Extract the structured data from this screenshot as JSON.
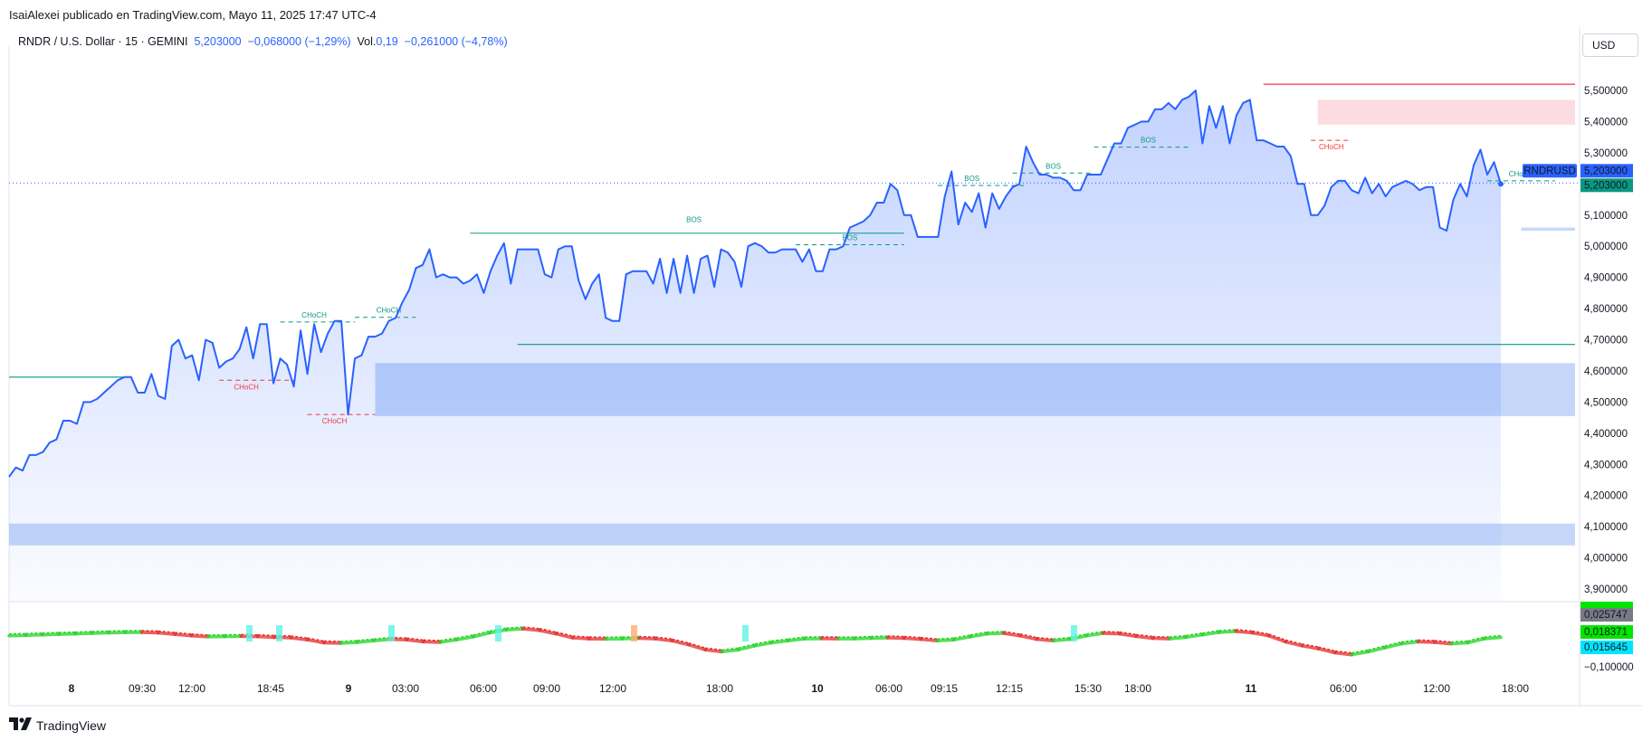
{
  "header": {
    "publisher_line": "IsaiAlexei publicado en TradingView.com, Mayo 11, 2025 17:47 UTC-4"
  },
  "symbol_bar": {
    "symbol": "RNDR / U.S. Dollar · 15 · GEMINI",
    "last": "5,203000",
    "change": "−0,068000 (−1,29%)",
    "vol_label": "Vol.",
    "vol_value": "0,19",
    "vol_change": "−0,261000 (−4,78%)"
  },
  "currency_button": "USD",
  "footer": {
    "logo_text": "TradingView"
  },
  "colors": {
    "price_line": "#2962ff",
    "bullish": "#089981",
    "bearish": "#f23645",
    "zone_blue": "#bbd0f8",
    "zone_red": "#fcdce0",
    "osc_up": "#22d422",
    "osc_down": "#e52b2b"
  },
  "chart_data": {
    "type": "line",
    "title": "",
    "price_axis": {
      "ticks": [
        5.5,
        5.4,
        5.3,
        5.2,
        5.1,
        5.0,
        4.9,
        4.8,
        4.7,
        4.6,
        4.5,
        4.4,
        4.3,
        4.2,
        4.1,
        4.0,
        3.9
      ],
      "tick_labels": [
        "5,500000",
        "5,400000",
        "5,300000",
        "5,200000",
        "5,100000",
        "5,000000",
        "4,900000",
        "4,800000",
        "4,700000",
        "4,600000",
        "4,500000",
        "4,400000",
        "4,300000",
        "4,200000",
        "4,100000",
        "4,000000",
        "3,900000"
      ],
      "ylim": [
        3.88,
        5.6
      ]
    },
    "time_axis": {
      "labels": [
        "8",
        "09:30",
        "12:00",
        "18:45",
        "9",
        "03:00",
        "06:00",
        "09:00",
        "12:00",
        "18:00",
        "10",
        "06:00",
        "09:15",
        "12:15",
        "15:30",
        "18:00",
        "11",
        "06:00",
        "12:00",
        "18:00"
      ],
      "bold": [
        "8",
        "9",
        "10",
        "11"
      ]
    },
    "series": [
      {
        "name": "RNDRUSD",
        "values": [
          4.26,
          4.29,
          4.28,
          4.33,
          4.33,
          4.34,
          4.37,
          4.38,
          4.44,
          4.44,
          4.43,
          4.5,
          4.5,
          4.51,
          4.53,
          4.55,
          4.57,
          4.58,
          4.58,
          4.53,
          4.53,
          4.59,
          4.52,
          4.51,
          4.68,
          4.7,
          4.64,
          4.65,
          4.57,
          4.7,
          4.69,
          4.61,
          4.63,
          4.64,
          4.67,
          4.74,
          4.64,
          4.75,
          4.75,
          4.56,
          4.64,
          4.62,
          4.55,
          4.73,
          4.59,
          4.75,
          4.66,
          4.72,
          4.76,
          4.76,
          4.46,
          4.64,
          4.65,
          4.71,
          4.71,
          4.72,
          4.76,
          4.77,
          4.82,
          4.86,
          4.93,
          4.94,
          4.99,
          4.9,
          4.91,
          4.9,
          4.9,
          4.88,
          4.89,
          4.91,
          4.85,
          4.92,
          4.97,
          5.01,
          4.88,
          4.99,
          4.99,
          4.99,
          4.99,
          4.91,
          4.9,
          4.99,
          5.0,
          5.0,
          4.89,
          4.83,
          4.88,
          4.91,
          4.77,
          4.76,
          4.76,
          4.91,
          4.92,
          4.92,
          4.92,
          4.88,
          4.96,
          4.85,
          4.96,
          4.85,
          4.97,
          4.85,
          4.96,
          4.97,
          4.87,
          4.99,
          4.98,
          4.95,
          4.87,
          5.0,
          5.01,
          5.0,
          4.98,
          4.98,
          4.99,
          4.99,
          4.99,
          4.95,
          4.99,
          4.92,
          4.92,
          4.99,
          4.99,
          5.0,
          5.06,
          5.07,
          5.08,
          5.1,
          5.14,
          5.14,
          5.2,
          5.18,
          5.1,
          5.1,
          5.03,
          5.03,
          5.03,
          5.03,
          5.16,
          5.24,
          5.07,
          5.14,
          5.11,
          5.17,
          5.06,
          5.17,
          5.12,
          5.16,
          5.19,
          5.2,
          5.32,
          5.27,
          5.23,
          5.23,
          5.22,
          5.22,
          5.21,
          5.18,
          5.18,
          5.23,
          5.23,
          5.23,
          5.28,
          5.33,
          5.33,
          5.38,
          5.39,
          5.4,
          5.4,
          5.44,
          5.44,
          5.46,
          5.44,
          5.47,
          5.48,
          5.5,
          5.33,
          5.45,
          5.38,
          5.45,
          5.33,
          5.42,
          5.46,
          5.47,
          5.34,
          5.34,
          5.33,
          5.32,
          5.32,
          5.29,
          5.2,
          5.2,
          5.1,
          5.1,
          5.13,
          5.19,
          5.21,
          5.21,
          5.18,
          5.17,
          5.22,
          5.17,
          5.2,
          5.16,
          5.19,
          5.2,
          5.21,
          5.2,
          5.18,
          5.19,
          5.19,
          5.06,
          5.05,
          5.15,
          5.2,
          5.16,
          5.26,
          5.31,
          5.23,
          5.27,
          5.2
        ],
        "last_value": 5.203
      }
    ],
    "last_price_label": "5,203000",
    "symbol_tag": "RNDRUSD",
    "annotations": [
      {
        "text": "BOS",
        "kind": "bos",
        "level": 5.042,
        "x_from": 68,
        "x_to": 132,
        "label_at": 101,
        "size": "large"
      },
      {
        "text": "BOS",
        "kind": "bos",
        "level": 5.005,
        "x_from": 116,
        "x_to": 132,
        "label_at": 124
      },
      {
        "text": "BOS",
        "kind": "bos",
        "level": 5.195,
        "x_from": 137,
        "x_to": 150,
        "label_at": 142
      },
      {
        "text": "BOS",
        "kind": "bos",
        "level": 5.235,
        "x_from": 148,
        "x_to": 160,
        "label_at": 154
      },
      {
        "text": "BOS",
        "kind": "bos",
        "level": 5.318,
        "x_from": 160,
        "x_to": 174,
        "label_at": 168
      },
      {
        "text": "CHoCH",
        "kind": "choch_bull",
        "level": 4.757,
        "x_from": 40,
        "x_to": 51,
        "label_at": 45
      },
      {
        "text": "CHoCH",
        "kind": "choch_bull",
        "level": 4.772,
        "x_from": 51,
        "x_to": 60,
        "label_at": 56
      },
      {
        "text": "CHoCH",
        "kind": "choch_bear",
        "level": 4.57,
        "x_from": 31,
        "x_to": 42,
        "label_at": 35
      },
      {
        "text": "CHoCH",
        "kind": "choch_bear",
        "level": 4.46,
        "x_from": 44,
        "x_to": 54,
        "label_at": 48
      },
      {
        "text": "CHoCH",
        "kind": "choch_bear",
        "level": 5.34,
        "x_from": 192,
        "x_to": 198,
        "label_at": 195
      },
      {
        "text": "CHoCH",
        "kind": "choch_bull",
        "level": 5.21,
        "x_from": 218,
        "x_to": 228,
        "label_at": 223
      }
    ],
    "levels": [
      {
        "kind": "bullish_line",
        "value": 4.58,
        "x_from": 0,
        "x_to": 17
      },
      {
        "kind": "bullish_line",
        "value": 4.685,
        "x_from": 75,
        "x_to": 999
      },
      {
        "kind": "bearish_line",
        "value": 5.52,
        "x_from": 185,
        "x_to": 999
      }
    ],
    "zones": [
      {
        "kind": "demand",
        "top": 4.625,
        "bottom": 4.455,
        "x_from": 54
      },
      {
        "kind": "demand",
        "top": 4.11,
        "bottom": 4.04,
        "x_from": 0
      },
      {
        "kind": "supply",
        "top": 5.47,
        "bottom": 5.39,
        "x_from": 193
      },
      {
        "kind": "demand_thin",
        "top": 5.06,
        "bottom": 5.05,
        "x_from": 223
      }
    ],
    "oscillator": {
      "axis_labels": [
        "0,025747",
        "0,018371",
        "0,015645",
        "−0,100000"
      ],
      "values": [
        0.02,
        0.025,
        0.03,
        0.035,
        0.04,
        0.045,
        0.05,
        0.053,
        0.055,
        0.05,
        0.035,
        0.02,
        0.01,
        0.012,
        0.015,
        0.012,
        0.005,
        0.0,
        -0.02,
        -0.05,
        -0.055,
        -0.045,
        -0.03,
        -0.015,
        -0.02,
        -0.04,
        -0.045,
        -0.02,
        0.01,
        0.05,
        0.08,
        0.09,
        0.075,
        0.04,
        0.0,
        -0.01,
        -0.012,
        -0.01,
        -0.005,
        -0.01,
        -0.03,
        -0.07,
        -0.12,
        -0.14,
        -0.12,
        -0.08,
        -0.05,
        -0.03,
        -0.01,
        -0.008,
        -0.01,
        -0.01,
        -0.005,
        0.0,
        -0.005,
        -0.015,
        -0.03,
        -0.02,
        0.01,
        0.04,
        0.045,
        0.02,
        -0.015,
        -0.03,
        -0.015,
        0.02,
        0.045,
        0.04,
        0.015,
        -0.005,
        -0.01,
        0.005,
        0.03,
        0.055,
        0.065,
        0.05,
        0.02,
        -0.04,
        -0.08,
        -0.11,
        -0.15,
        -0.17,
        -0.14,
        -0.1,
        -0.06,
        -0.04,
        -0.045,
        -0.06,
        -0.05,
        -0.01,
        0.005
      ],
      "labels_colors": [
        "#787b86",
        "#00e600",
        "#00e5ff",
        "#131722"
      ]
    }
  }
}
